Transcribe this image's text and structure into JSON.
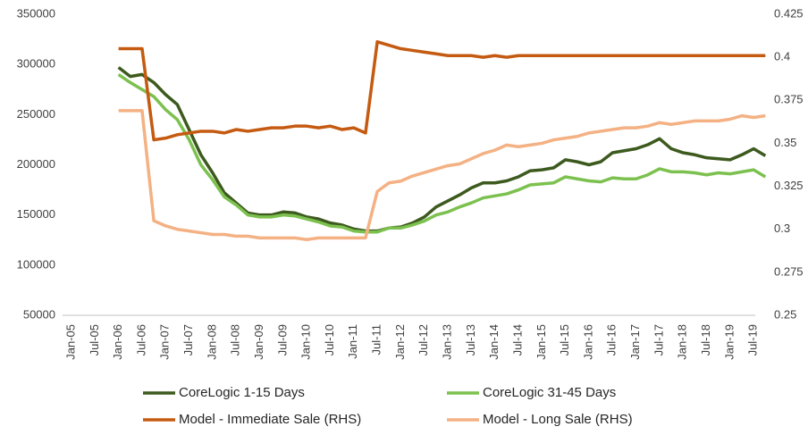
{
  "chart_data": {
    "type": "line",
    "categories": [
      "Jan-05",
      null,
      "Jul-05",
      null,
      "Jan-06",
      null,
      "Jul-06",
      null,
      "Jan-07",
      null,
      "Jul-07",
      null,
      "Jan-08",
      null,
      "Jul-08",
      null,
      "Jan-09",
      null,
      "Jul-09",
      null,
      "Jan-10",
      null,
      "Jul-10",
      null,
      "Jan-11",
      null,
      "Jul-11",
      null,
      "Jan-12",
      null,
      "Jul-12",
      null,
      "Jan-13",
      null,
      "Jul-13",
      null,
      "Jan-14",
      null,
      "Jul-14",
      null,
      "Jan-15",
      null,
      "Jul-15",
      null,
      "Jan-16",
      null,
      "Jul-16",
      null,
      "Jan-17",
      null,
      "Jul-17",
      null,
      "Jan-18",
      null,
      "Jul-18",
      null,
      "Jan-19",
      null,
      "Jul-19",
      null
    ],
    "series": [
      {
        "name": "CoreLogic 1-15 Days",
        "color": "#3d5a1e",
        "values": [
          null,
          null,
          null,
          null,
          297000,
          288000,
          290000,
          282000,
          270000,
          260000,
          235000,
          210000,
          192000,
          172000,
          162000,
          152000,
          150000,
          150000,
          153000,
          152000,
          148000,
          146000,
          142000,
          140000,
          136000,
          134000,
          134000,
          137000,
          138000,
          142000,
          148000,
          158000,
          164000,
          170000,
          177000,
          182000,
          182000,
          184000,
          188000,
          194000,
          195000,
          197000,
          205000,
          203000,
          200000,
          203000,
          212000,
          214000,
          216000,
          220000,
          226000,
          216000,
          212000,
          210000,
          207000,
          206000,
          205000,
          210000,
          216000,
          209000
        ]
      },
      {
        "name": "CoreLogic 31-45 Days",
        "color": "#7cc14f",
        "values": [
          null,
          null,
          null,
          null,
          290000,
          282000,
          275000,
          268000,
          255000,
          245000,
          225000,
          200000,
          185000,
          168000,
          160000,
          150000,
          148000,
          148000,
          150000,
          149000,
          146000,
          143000,
          139000,
          138000,
          134000,
          133000,
          133000,
          137000,
          137000,
          140000,
          144000,
          150000,
          153000,
          158000,
          162000,
          167000,
          169000,
          171000,
          175000,
          180000,
          181000,
          182000,
          188000,
          186000,
          184000,
          183000,
          187000,
          186000,
          186000,
          190000,
          196000,
          193000,
          193000,
          192000,
          190000,
          192000,
          191000,
          193000,
          195000,
          188000
        ]
      },
      {
        "name": "Model - Immediate Sale (RHS)",
        "color": "#c55a11",
        "axis": "y2",
        "values": [
          null,
          null,
          null,
          null,
          0.405,
          0.405,
          0.405,
          0.352,
          0.353,
          0.355,
          0.356,
          0.357,
          0.357,
          0.356,
          0.358,
          0.357,
          0.358,
          0.359,
          0.359,
          0.36,
          0.36,
          0.359,
          0.36,
          0.358,
          0.359,
          0.356,
          0.409,
          0.407,
          0.405,
          0.404,
          0.403,
          0.402,
          0.401,
          0.401,
          0.401,
          0.4,
          0.401,
          0.4,
          0.401,
          0.401,
          0.401,
          0.401,
          0.401,
          0.401,
          0.401,
          0.401,
          0.401,
          0.401,
          0.401,
          0.401,
          0.401,
          0.401,
          0.401,
          0.401,
          0.401,
          0.401,
          0.401,
          0.401,
          0.401,
          0.401
        ]
      },
      {
        "name": "Model - Long Sale (RHS)",
        "color": "#f4b183",
        "axis": "y2",
        "values": [
          null,
          null,
          null,
          null,
          0.369,
          0.369,
          0.369,
          0.305,
          0.302,
          0.3,
          0.299,
          0.298,
          0.297,
          0.297,
          0.296,
          0.296,
          0.295,
          0.295,
          0.295,
          0.295,
          0.294,
          0.295,
          0.295,
          0.295,
          0.295,
          0.295,
          0.322,
          0.327,
          0.328,
          0.331,
          0.333,
          0.335,
          0.337,
          0.338,
          0.341,
          0.344,
          0.346,
          0.349,
          0.348,
          0.349,
          0.35,
          0.352,
          0.353,
          0.354,
          0.356,
          0.357,
          0.358,
          0.359,
          0.359,
          0.36,
          0.362,
          0.361,
          0.362,
          0.363,
          0.363,
          0.363,
          0.364,
          0.366,
          0.365,
          0.366
        ]
      }
    ],
    "ylim": [
      50000,
      350000
    ],
    "yticks": [
      50000,
      100000,
      150000,
      200000,
      250000,
      300000,
      350000
    ],
    "y2lim": [
      0.25,
      0.425
    ],
    "y2ticks": [
      0.25,
      0.275,
      0.3,
      0.325,
      0.35,
      0.375,
      0.4,
      0.425
    ],
    "legend": "bottom",
    "grid": false
  }
}
